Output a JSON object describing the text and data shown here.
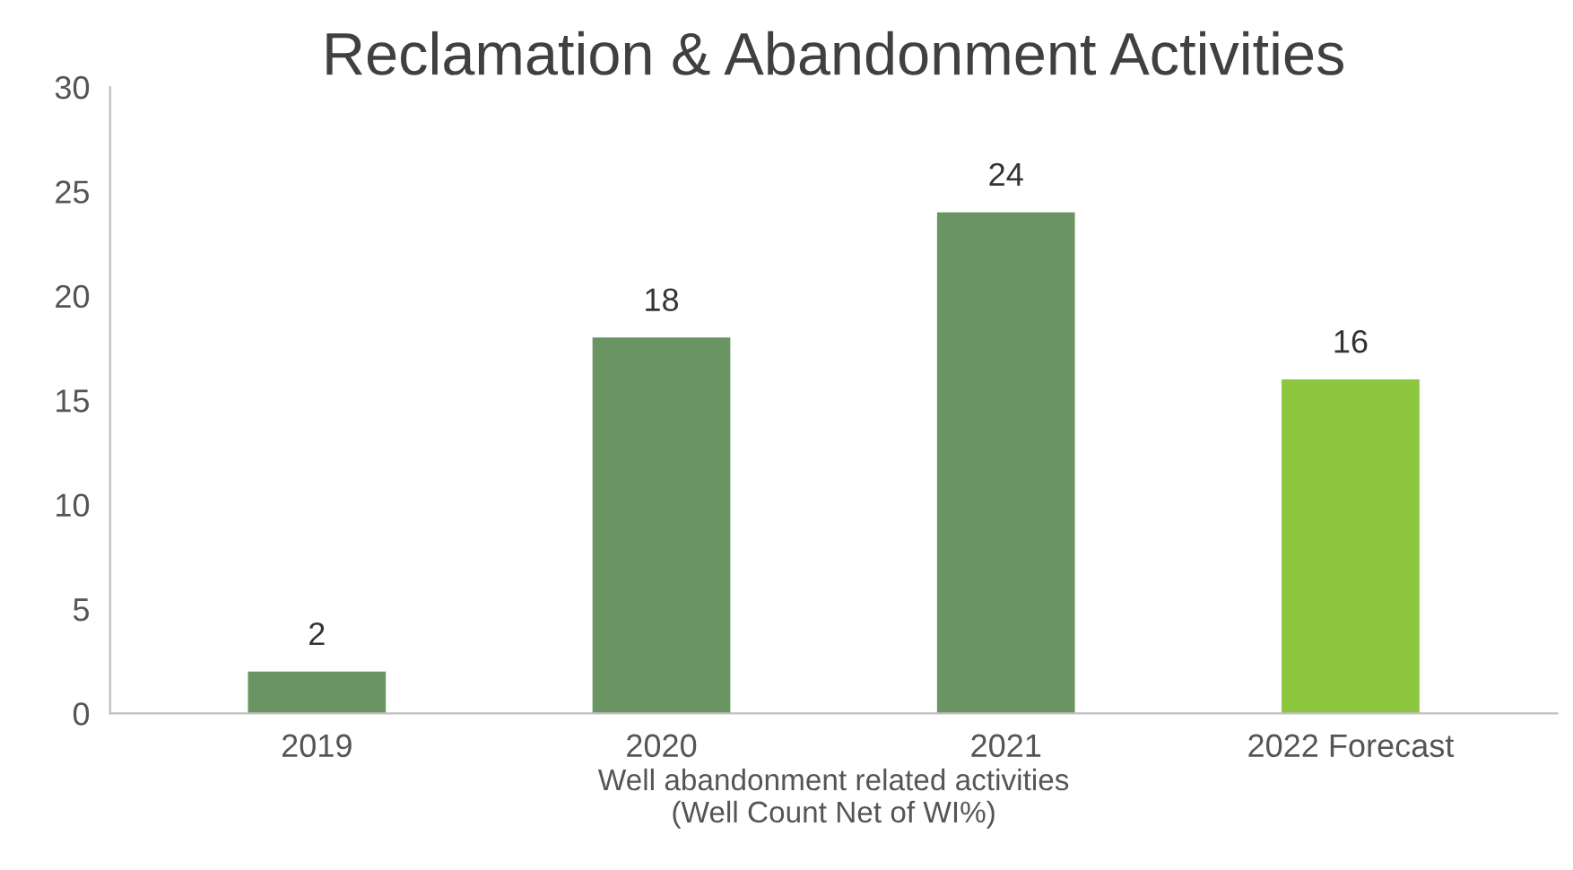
{
  "chart_data": {
    "type": "bar",
    "title": "Reclamation & Abandonment Activities",
    "xlabel": "Well abandonment related activities\n(Well Count Net of WI%)",
    "categories": [
      "2019",
      "2020",
      "2021",
      "2022 Forecast"
    ],
    "values": [
      2,
      18,
      24,
      16
    ],
    "colors": [
      "#6a9461",
      "#6a9461",
      "#6a9461",
      "#8dc63f"
    ],
    "ylim": [
      0,
      30
    ],
    "yticks": [
      0,
      5,
      10,
      15,
      20,
      25,
      30
    ],
    "grid": false,
    "data_labels": true
  }
}
